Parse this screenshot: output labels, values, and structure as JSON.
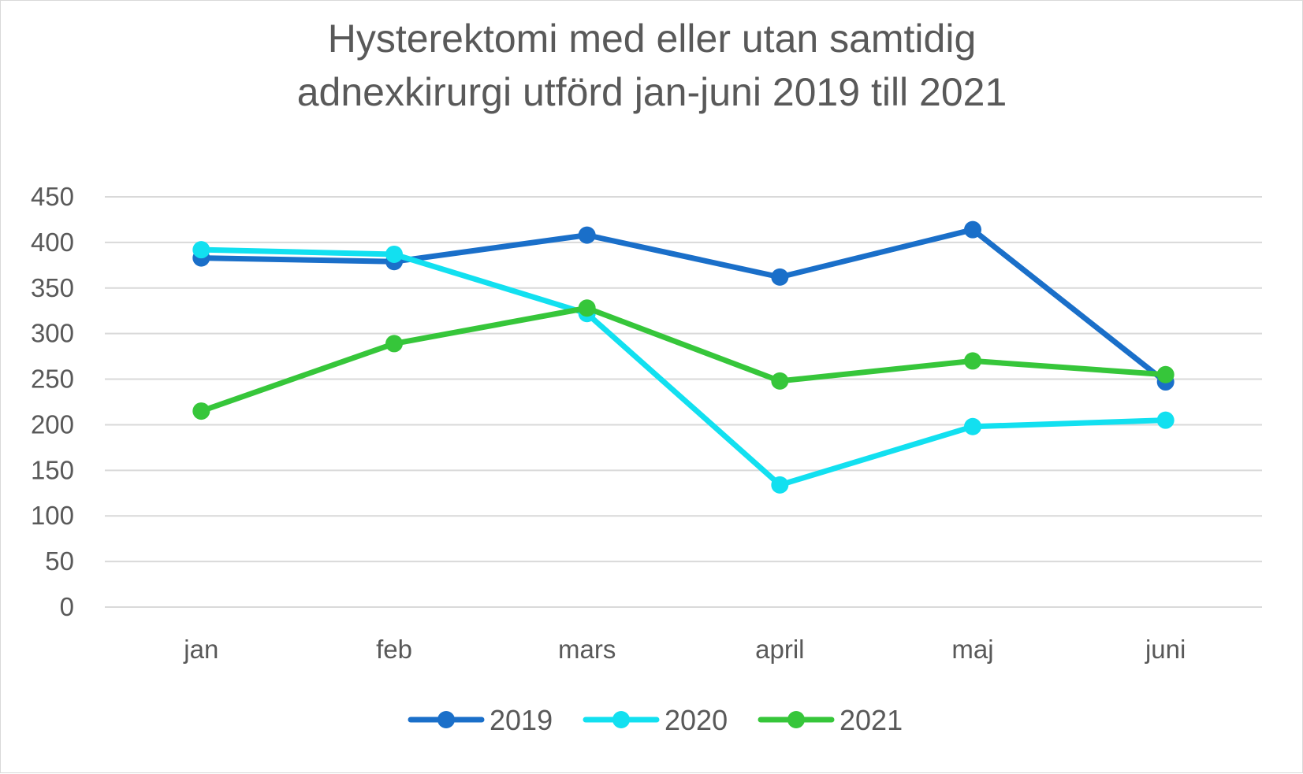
{
  "chart_data": {
    "type": "line",
    "title": "Hysterektomi med eller utan samtidig\nadnexkirurgi utförd jan-juni 2019 till 2021",
    "xlabel": "",
    "ylabel": "",
    "categories": [
      "jan",
      "feb",
      "mars",
      "april",
      "maj",
      "juni"
    ],
    "ylim": [
      0,
      450
    ],
    "yticks": [
      0,
      50,
      100,
      150,
      200,
      250,
      300,
      350,
      400,
      450
    ],
    "grid": true,
    "legend_position": "bottom",
    "series": [
      {
        "name": "2019",
        "color": "#1a6fc9",
        "values": [
          383,
          379,
          408,
          362,
          414,
          247
        ]
      },
      {
        "name": "2020",
        "color": "#12e0f0",
        "values": [
          392,
          387,
          322,
          134,
          198,
          205
        ]
      },
      {
        "name": "2021",
        "color": "#36c63a",
        "values": [
          215,
          289,
          328,
          248,
          270,
          255
        ]
      }
    ]
  }
}
